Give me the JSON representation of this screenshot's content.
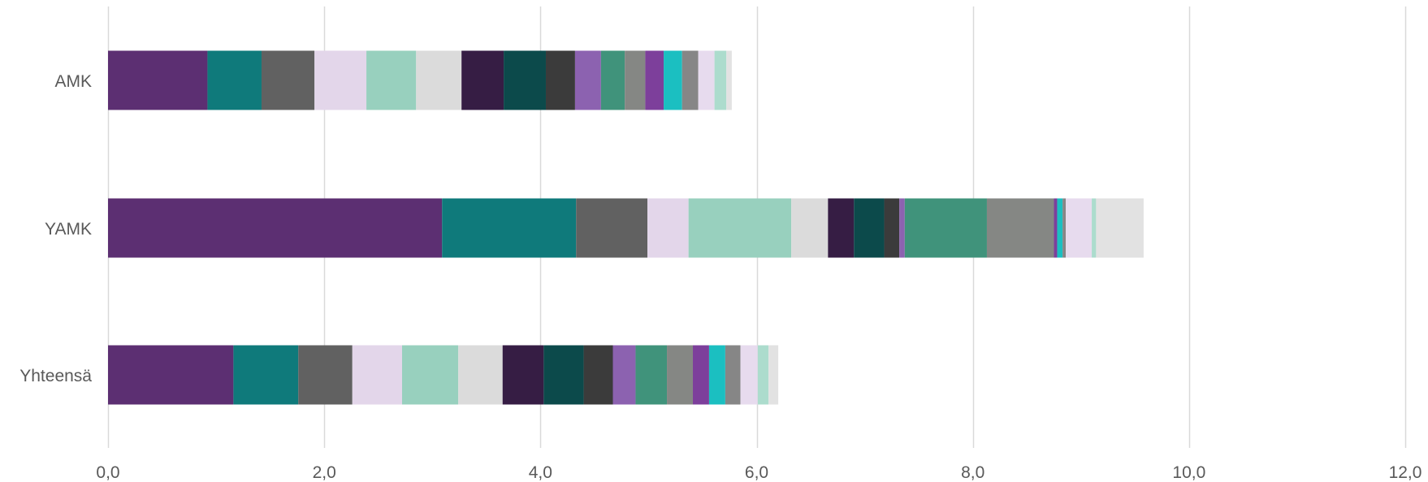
{
  "chart_data": {
    "type": "bar",
    "orientation": "horizontal",
    "stacked": true,
    "categories": [
      "AMK",
      "YAMK",
      "Yhteensä"
    ],
    "xlim": [
      0,
      12
    ],
    "xticks": [
      "0,0",
      "2,0",
      "4,0",
      "6,0",
      "8,0",
      "10,0",
      "12,0"
    ],
    "grid": "vertical",
    "legend": "none",
    "series": [
      {
        "color": "#5c2f72",
        "values": [
          0.92,
          3.09,
          1.16
        ]
      },
      {
        "color": "#0f7a7b",
        "values": [
          0.5,
          1.24,
          0.6
        ]
      },
      {
        "color": "#616161",
        "values": [
          0.49,
          0.66,
          0.5
        ]
      },
      {
        "color": "#e3d6ea",
        "values": [
          0.48,
          0.38,
          0.46
        ]
      },
      {
        "color": "#98d0be",
        "values": [
          0.46,
          0.95,
          0.52
        ]
      },
      {
        "color": "#dbdbdb",
        "values": [
          0.42,
          0.34,
          0.41
        ]
      },
      {
        "color": "#361d44",
        "values": [
          0.39,
          0.24,
          0.38
        ]
      },
      {
        "color": "#0c4a4b",
        "values": [
          0.39,
          0.28,
          0.37
        ]
      },
      {
        "color": "#3b3b3b",
        "values": [
          0.27,
          0.14,
          0.27
        ]
      },
      {
        "color": "#8c62b0",
        "values": [
          0.24,
          0.05,
          0.21
        ]
      },
      {
        "color": "#40937b",
        "values": [
          0.22,
          0.76,
          0.29
        ]
      },
      {
        "color": "#858784",
        "values": [
          0.19,
          0.62,
          0.24
        ]
      },
      {
        "color": "#7d3f9b",
        "values": [
          0.17,
          0.03,
          0.15
        ]
      },
      {
        "color": "#1bbfc1",
        "values": [
          0.17,
          0.05,
          0.15
        ]
      },
      {
        "color": "#868686",
        "values": [
          0.15,
          0.03,
          0.14
        ]
      },
      {
        "color": "#e7dbee",
        "values": [
          0.15,
          0.24,
          0.16
        ]
      },
      {
        "color": "#acdccd",
        "values": [
          0.11,
          0.04,
          0.1
        ]
      },
      {
        "color": "#e2e2e2",
        "values": [
          0.05,
          0.44,
          0.09
        ]
      }
    ]
  }
}
